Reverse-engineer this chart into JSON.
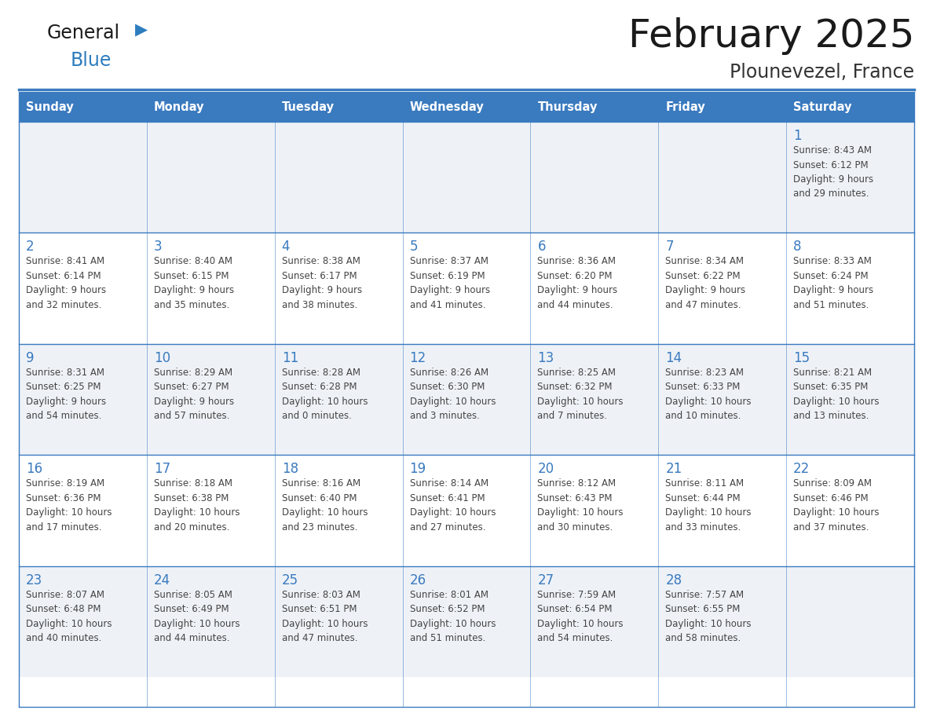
{
  "title": "February 2025",
  "subtitle": "Plounevezel, France",
  "days_of_week": [
    "Sunday",
    "Monday",
    "Tuesday",
    "Wednesday",
    "Thursday",
    "Friday",
    "Saturday"
  ],
  "header_bg": "#3a7abf",
  "header_text": "#ffffff",
  "cell_bg_light": "#eef2f7",
  "cell_bg_white": "#ffffff",
  "day_number_color": "#3a7abf",
  "text_color": "#444444",
  "line_color": "#3a7abf",
  "logo_general_color": "#1a1a1a",
  "logo_blue_color": "#2e7dbf",
  "weeks": [
    [
      {
        "day": null,
        "info": null
      },
      {
        "day": null,
        "info": null
      },
      {
        "day": null,
        "info": null
      },
      {
        "day": null,
        "info": null
      },
      {
        "day": null,
        "info": null
      },
      {
        "day": null,
        "info": null
      },
      {
        "day": 1,
        "info": "Sunrise: 8:43 AM\nSunset: 6:12 PM\nDaylight: 9 hours\nand 29 minutes."
      }
    ],
    [
      {
        "day": 2,
        "info": "Sunrise: 8:41 AM\nSunset: 6:14 PM\nDaylight: 9 hours\nand 32 minutes."
      },
      {
        "day": 3,
        "info": "Sunrise: 8:40 AM\nSunset: 6:15 PM\nDaylight: 9 hours\nand 35 minutes."
      },
      {
        "day": 4,
        "info": "Sunrise: 8:38 AM\nSunset: 6:17 PM\nDaylight: 9 hours\nand 38 minutes."
      },
      {
        "day": 5,
        "info": "Sunrise: 8:37 AM\nSunset: 6:19 PM\nDaylight: 9 hours\nand 41 minutes."
      },
      {
        "day": 6,
        "info": "Sunrise: 8:36 AM\nSunset: 6:20 PM\nDaylight: 9 hours\nand 44 minutes."
      },
      {
        "day": 7,
        "info": "Sunrise: 8:34 AM\nSunset: 6:22 PM\nDaylight: 9 hours\nand 47 minutes."
      },
      {
        "day": 8,
        "info": "Sunrise: 8:33 AM\nSunset: 6:24 PM\nDaylight: 9 hours\nand 51 minutes."
      }
    ],
    [
      {
        "day": 9,
        "info": "Sunrise: 8:31 AM\nSunset: 6:25 PM\nDaylight: 9 hours\nand 54 minutes."
      },
      {
        "day": 10,
        "info": "Sunrise: 8:29 AM\nSunset: 6:27 PM\nDaylight: 9 hours\nand 57 minutes."
      },
      {
        "day": 11,
        "info": "Sunrise: 8:28 AM\nSunset: 6:28 PM\nDaylight: 10 hours\nand 0 minutes."
      },
      {
        "day": 12,
        "info": "Sunrise: 8:26 AM\nSunset: 6:30 PM\nDaylight: 10 hours\nand 3 minutes."
      },
      {
        "day": 13,
        "info": "Sunrise: 8:25 AM\nSunset: 6:32 PM\nDaylight: 10 hours\nand 7 minutes."
      },
      {
        "day": 14,
        "info": "Sunrise: 8:23 AM\nSunset: 6:33 PM\nDaylight: 10 hours\nand 10 minutes."
      },
      {
        "day": 15,
        "info": "Sunrise: 8:21 AM\nSunset: 6:35 PM\nDaylight: 10 hours\nand 13 minutes."
      }
    ],
    [
      {
        "day": 16,
        "info": "Sunrise: 8:19 AM\nSunset: 6:36 PM\nDaylight: 10 hours\nand 17 minutes."
      },
      {
        "day": 17,
        "info": "Sunrise: 8:18 AM\nSunset: 6:38 PM\nDaylight: 10 hours\nand 20 minutes."
      },
      {
        "day": 18,
        "info": "Sunrise: 8:16 AM\nSunset: 6:40 PM\nDaylight: 10 hours\nand 23 minutes."
      },
      {
        "day": 19,
        "info": "Sunrise: 8:14 AM\nSunset: 6:41 PM\nDaylight: 10 hours\nand 27 minutes."
      },
      {
        "day": 20,
        "info": "Sunrise: 8:12 AM\nSunset: 6:43 PM\nDaylight: 10 hours\nand 30 minutes."
      },
      {
        "day": 21,
        "info": "Sunrise: 8:11 AM\nSunset: 6:44 PM\nDaylight: 10 hours\nand 33 minutes."
      },
      {
        "day": 22,
        "info": "Sunrise: 8:09 AM\nSunset: 6:46 PM\nDaylight: 10 hours\nand 37 minutes."
      }
    ],
    [
      {
        "day": 23,
        "info": "Sunrise: 8:07 AM\nSunset: 6:48 PM\nDaylight: 10 hours\nand 40 minutes."
      },
      {
        "day": 24,
        "info": "Sunrise: 8:05 AM\nSunset: 6:49 PM\nDaylight: 10 hours\nand 44 minutes."
      },
      {
        "day": 25,
        "info": "Sunrise: 8:03 AM\nSunset: 6:51 PM\nDaylight: 10 hours\nand 47 minutes."
      },
      {
        "day": 26,
        "info": "Sunrise: 8:01 AM\nSunset: 6:52 PM\nDaylight: 10 hours\nand 51 minutes."
      },
      {
        "day": 27,
        "info": "Sunrise: 7:59 AM\nSunset: 6:54 PM\nDaylight: 10 hours\nand 54 minutes."
      },
      {
        "day": 28,
        "info": "Sunrise: 7:57 AM\nSunset: 6:55 PM\nDaylight: 10 hours\nand 58 minutes."
      },
      {
        "day": null,
        "info": null
      }
    ]
  ],
  "fig_width": 11.88,
  "fig_height": 9.18,
  "dpi": 100
}
